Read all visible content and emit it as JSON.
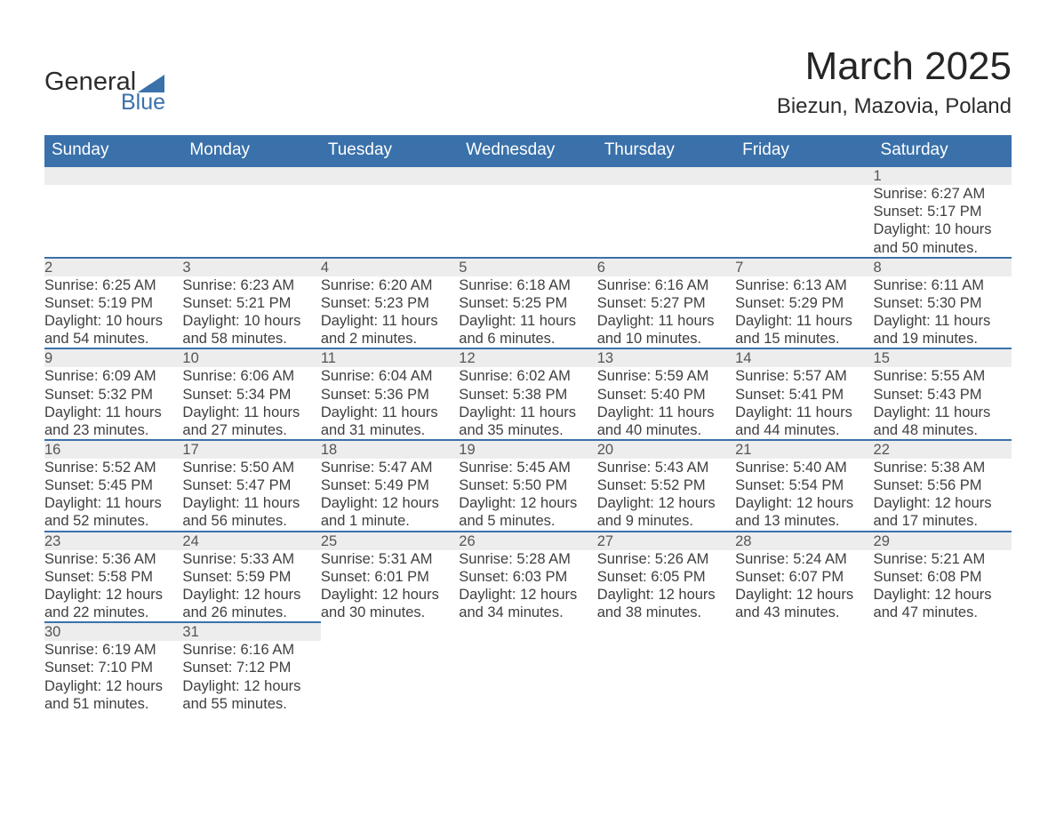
{
  "brand": {
    "word1": "General",
    "word2": "Blue"
  },
  "title": "March 2025",
  "location": "Biezun, Mazovia, Poland",
  "colors": {
    "header_bg": "#3a71aa",
    "header_text": "#ffffff",
    "daynum_bg": "#ededed",
    "row_divider": "#3a71aa",
    "text": "#3a3a3a",
    "logo_blue": "#3a71aa"
  },
  "day_headers": [
    "Sunday",
    "Monday",
    "Tuesday",
    "Wednesday",
    "Thursday",
    "Friday",
    "Saturday"
  ],
  "layout": {
    "first_weekday_index": 6,
    "days_in_month": 31,
    "rows": 6,
    "cols": 7
  },
  "days": {
    "1": {
      "sunrise": "Sunrise: 6:27 AM",
      "sunset": "Sunset: 5:17 PM",
      "daylight": "Daylight: 10 hours and 50 minutes."
    },
    "2": {
      "sunrise": "Sunrise: 6:25 AM",
      "sunset": "Sunset: 5:19 PM",
      "daylight": "Daylight: 10 hours and 54 minutes."
    },
    "3": {
      "sunrise": "Sunrise: 6:23 AM",
      "sunset": "Sunset: 5:21 PM",
      "daylight": "Daylight: 10 hours and 58 minutes."
    },
    "4": {
      "sunrise": "Sunrise: 6:20 AM",
      "sunset": "Sunset: 5:23 PM",
      "daylight": "Daylight: 11 hours and 2 minutes."
    },
    "5": {
      "sunrise": "Sunrise: 6:18 AM",
      "sunset": "Sunset: 5:25 PM",
      "daylight": "Daylight: 11 hours and 6 minutes."
    },
    "6": {
      "sunrise": "Sunrise: 6:16 AM",
      "sunset": "Sunset: 5:27 PM",
      "daylight": "Daylight: 11 hours and 10 minutes."
    },
    "7": {
      "sunrise": "Sunrise: 6:13 AM",
      "sunset": "Sunset: 5:29 PM",
      "daylight": "Daylight: 11 hours and 15 minutes."
    },
    "8": {
      "sunrise": "Sunrise: 6:11 AM",
      "sunset": "Sunset: 5:30 PM",
      "daylight": "Daylight: 11 hours and 19 minutes."
    },
    "9": {
      "sunrise": "Sunrise: 6:09 AM",
      "sunset": "Sunset: 5:32 PM",
      "daylight": "Daylight: 11 hours and 23 minutes."
    },
    "10": {
      "sunrise": "Sunrise: 6:06 AM",
      "sunset": "Sunset: 5:34 PM",
      "daylight": "Daylight: 11 hours and 27 minutes."
    },
    "11": {
      "sunrise": "Sunrise: 6:04 AM",
      "sunset": "Sunset: 5:36 PM",
      "daylight": "Daylight: 11 hours and 31 minutes."
    },
    "12": {
      "sunrise": "Sunrise: 6:02 AM",
      "sunset": "Sunset: 5:38 PM",
      "daylight": "Daylight: 11 hours and 35 minutes."
    },
    "13": {
      "sunrise": "Sunrise: 5:59 AM",
      "sunset": "Sunset: 5:40 PM",
      "daylight": "Daylight: 11 hours and 40 minutes."
    },
    "14": {
      "sunrise": "Sunrise: 5:57 AM",
      "sunset": "Sunset: 5:41 PM",
      "daylight": "Daylight: 11 hours and 44 minutes."
    },
    "15": {
      "sunrise": "Sunrise: 5:55 AM",
      "sunset": "Sunset: 5:43 PM",
      "daylight": "Daylight: 11 hours and 48 minutes."
    },
    "16": {
      "sunrise": "Sunrise: 5:52 AM",
      "sunset": "Sunset: 5:45 PM",
      "daylight": "Daylight: 11 hours and 52 minutes."
    },
    "17": {
      "sunrise": "Sunrise: 5:50 AM",
      "sunset": "Sunset: 5:47 PM",
      "daylight": "Daylight: 11 hours and 56 minutes."
    },
    "18": {
      "sunrise": "Sunrise: 5:47 AM",
      "sunset": "Sunset: 5:49 PM",
      "daylight": "Daylight: 12 hours and 1 minute."
    },
    "19": {
      "sunrise": "Sunrise: 5:45 AM",
      "sunset": "Sunset: 5:50 PM",
      "daylight": "Daylight: 12 hours and 5 minutes."
    },
    "20": {
      "sunrise": "Sunrise: 5:43 AM",
      "sunset": "Sunset: 5:52 PM",
      "daylight": "Daylight: 12 hours and 9 minutes."
    },
    "21": {
      "sunrise": "Sunrise: 5:40 AM",
      "sunset": "Sunset: 5:54 PM",
      "daylight": "Daylight: 12 hours and 13 minutes."
    },
    "22": {
      "sunrise": "Sunrise: 5:38 AM",
      "sunset": "Sunset: 5:56 PM",
      "daylight": "Daylight: 12 hours and 17 minutes."
    },
    "23": {
      "sunrise": "Sunrise: 5:36 AM",
      "sunset": "Sunset: 5:58 PM",
      "daylight": "Daylight: 12 hours and 22 minutes."
    },
    "24": {
      "sunrise": "Sunrise: 5:33 AM",
      "sunset": "Sunset: 5:59 PM",
      "daylight": "Daylight: 12 hours and 26 minutes."
    },
    "25": {
      "sunrise": "Sunrise: 5:31 AM",
      "sunset": "Sunset: 6:01 PM",
      "daylight": "Daylight: 12 hours and 30 minutes."
    },
    "26": {
      "sunrise": "Sunrise: 5:28 AM",
      "sunset": "Sunset: 6:03 PM",
      "daylight": "Daylight: 12 hours and 34 minutes."
    },
    "27": {
      "sunrise": "Sunrise: 5:26 AM",
      "sunset": "Sunset: 6:05 PM",
      "daylight": "Daylight: 12 hours and 38 minutes."
    },
    "28": {
      "sunrise": "Sunrise: 5:24 AM",
      "sunset": "Sunset: 6:07 PM",
      "daylight": "Daylight: 12 hours and 43 minutes."
    },
    "29": {
      "sunrise": "Sunrise: 5:21 AM",
      "sunset": "Sunset: 6:08 PM",
      "daylight": "Daylight: 12 hours and 47 minutes."
    },
    "30": {
      "sunrise": "Sunrise: 6:19 AM",
      "sunset": "Sunset: 7:10 PM",
      "daylight": "Daylight: 12 hours and 51 minutes."
    },
    "31": {
      "sunrise": "Sunrise: 6:16 AM",
      "sunset": "Sunset: 7:12 PM",
      "daylight": "Daylight: 12 hours and 55 minutes."
    }
  }
}
